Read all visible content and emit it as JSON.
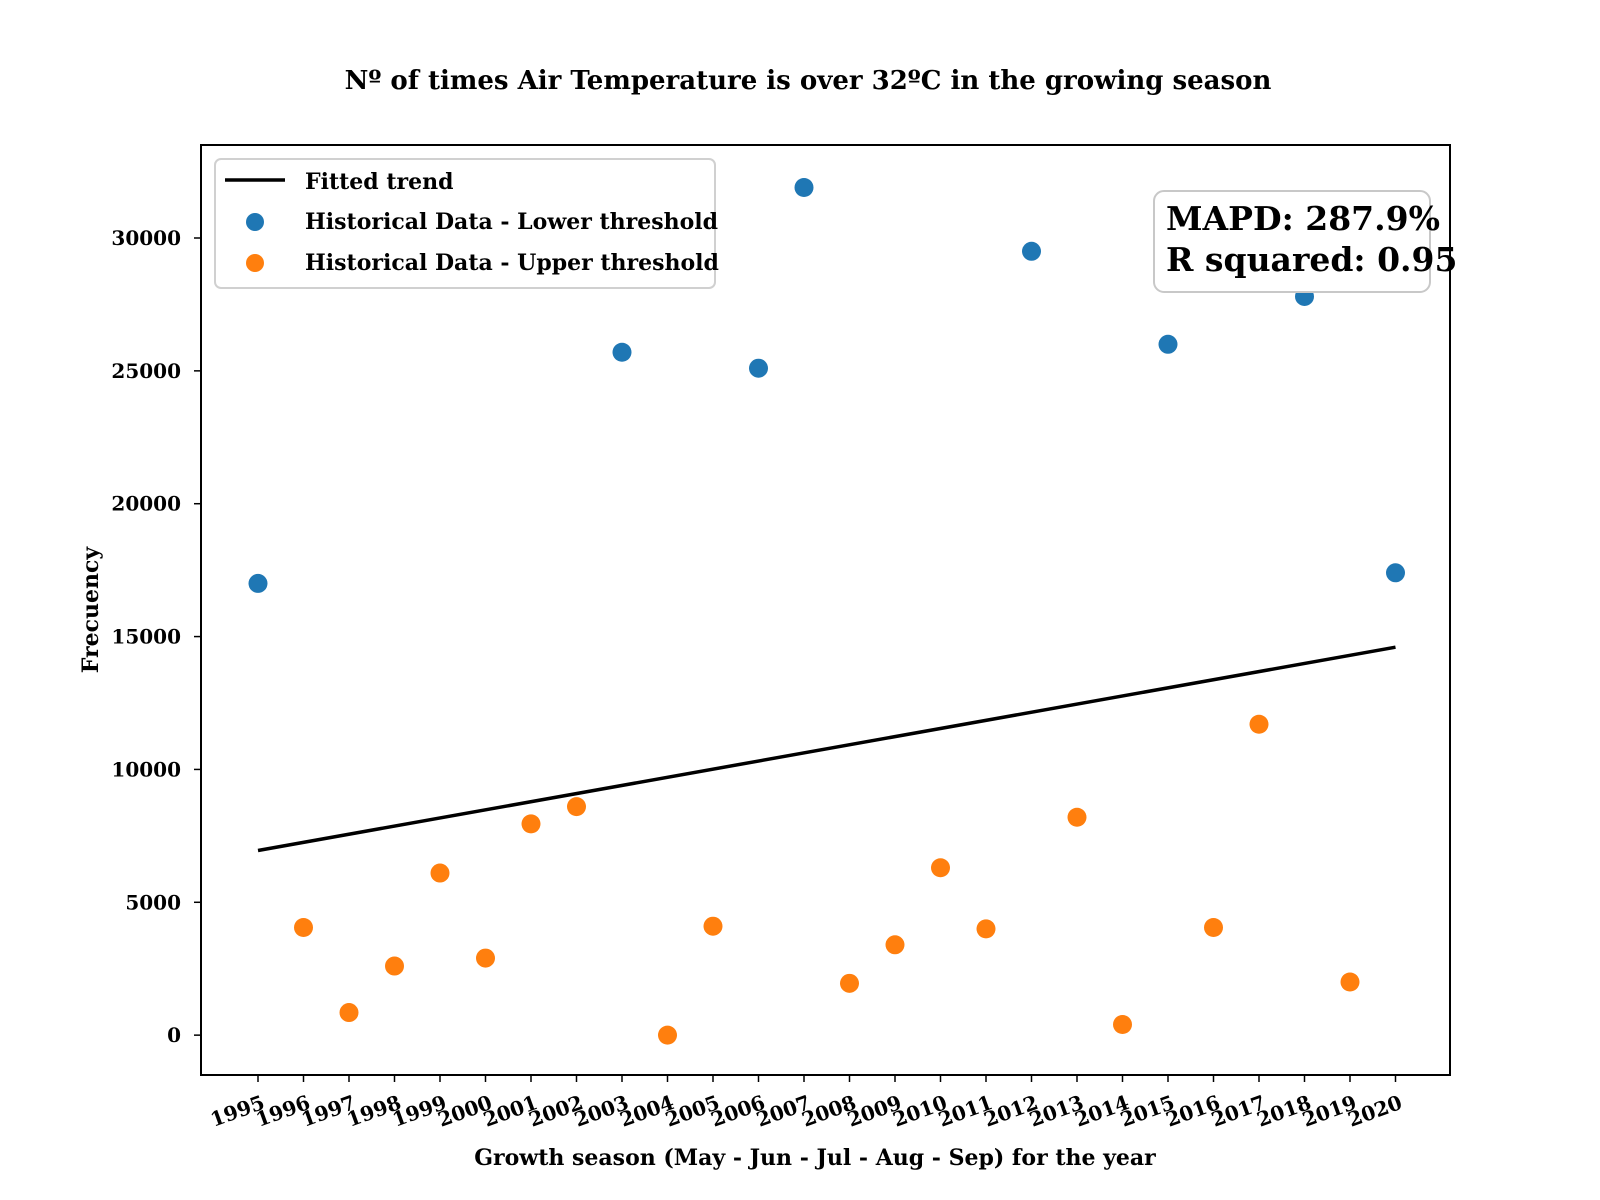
{
  "chart_data": {
    "type": "scatter",
    "title": "Nº of times Air Temperature is over 32ºC in the growing season",
    "xlabel": "Growth season (May - Jun - Jul - Aug - Sep) for the year",
    "ylabel": "Frecuency",
    "ylim": [
      -1500,
      33500
    ],
    "yticks": [
      0,
      5000,
      10000,
      15000,
      20000,
      25000,
      30000
    ],
    "categories": [
      "1995",
      "1996",
      "1997",
      "1998",
      "1999",
      "2000",
      "2001",
      "2002",
      "2003",
      "2004",
      "2005",
      "2006",
      "2007",
      "2008",
      "2009",
      "2010",
      "2011",
      "2012",
      "2013",
      "2014",
      "2015",
      "2016",
      "2017",
      "2018",
      "2019",
      "2020"
    ],
    "series": [
      {
        "name": "Historical Data - Lower threshold",
        "color": "#1f77b4",
        "points": [
          {
            "x": "1995",
            "y": 17000
          },
          {
            "x": "2003",
            "y": 25700
          },
          {
            "x": "2006",
            "y": 25100
          },
          {
            "x": "2007",
            "y": 31900
          },
          {
            "x": "2012",
            "y": 29500
          },
          {
            "x": "2015",
            "y": 26000
          },
          {
            "x": "2018",
            "y": 27800
          },
          {
            "x": "2020",
            "y": 17400
          }
        ]
      },
      {
        "name": "Historical Data - Upper threshold",
        "color": "#ff7f0e",
        "points": [
          {
            "x": "1996",
            "y": 4050
          },
          {
            "x": "1997",
            "y": 850
          },
          {
            "x": "1998",
            "y": 2600
          },
          {
            "x": "1999",
            "y": 6100
          },
          {
            "x": "2000",
            "y": 2900
          },
          {
            "x": "2001",
            "y": 7950
          },
          {
            "x": "2002",
            "y": 8600
          },
          {
            "x": "2004",
            "y": 0
          },
          {
            "x": "2005",
            "y": 4100
          },
          {
            "x": "2008",
            "y": 1950
          },
          {
            "x": "2009",
            "y": 3400
          },
          {
            "x": "2010",
            "y": 6300
          },
          {
            "x": "2011",
            "y": 4000
          },
          {
            "x": "2013",
            "y": 8200
          },
          {
            "x": "2014",
            "y": 400
          },
          {
            "x": "2016",
            "y": 4050
          },
          {
            "x": "2017",
            "y": 11700
          },
          {
            "x": "2019",
            "y": 2000
          }
        ]
      }
    ],
    "trend": {
      "name": "Fitted trend",
      "color": "#000000",
      "start": {
        "x": "1995",
        "y": 6950
      },
      "end": {
        "x": "2020",
        "y": 14600
      }
    },
    "legend_position": "upper-left",
    "annotation": {
      "line1": "MAPD: 287.9%",
      "line2": "R squared: 0.95"
    },
    "grid": false
  }
}
